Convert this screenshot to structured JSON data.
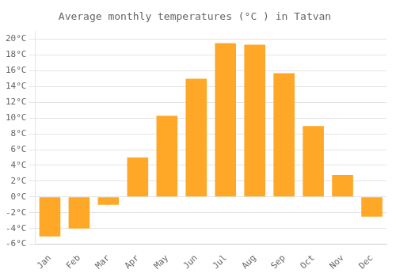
{
  "chart_data": {
    "type": "bar",
    "title": "Average monthly temperatures (°C ) in Tatvan",
    "categories": [
      "Jan",
      "Feb",
      "Mar",
      "Apr",
      "May",
      "Jun",
      "Jul",
      "Aug",
      "Sep",
      "Oct",
      "Nov",
      "Dec"
    ],
    "values": [
      -5.0,
      -4.0,
      -1.0,
      5.0,
      10.3,
      15.0,
      19.5,
      19.3,
      15.7,
      9.0,
      2.8,
      -2.5
    ],
    "color": "#FFA726",
    "ylim": [
      -6,
      21
    ],
    "yticks": [
      {
        "value": -6,
        "label": "-6°C"
      },
      {
        "value": -4,
        "label": "-4°C"
      },
      {
        "value": -2,
        "label": "-2°C"
      },
      {
        "value": 0,
        "label": "0°C"
      },
      {
        "value": 2,
        "label": "2°C"
      },
      {
        "value": 4,
        "label": "4°C"
      },
      {
        "value": 6,
        "label": "6°C"
      },
      {
        "value": 8,
        "label": "8°C"
      },
      {
        "value": 10,
        "label": "10°C"
      },
      {
        "value": 12,
        "label": "12°C"
      },
      {
        "value": 14,
        "label": "14°C"
      },
      {
        "value": 16,
        "label": "16°C"
      },
      {
        "value": 18,
        "label": "18°C"
      },
      {
        "value": 20,
        "label": "20°C"
      }
    ],
    "grid": true
  }
}
